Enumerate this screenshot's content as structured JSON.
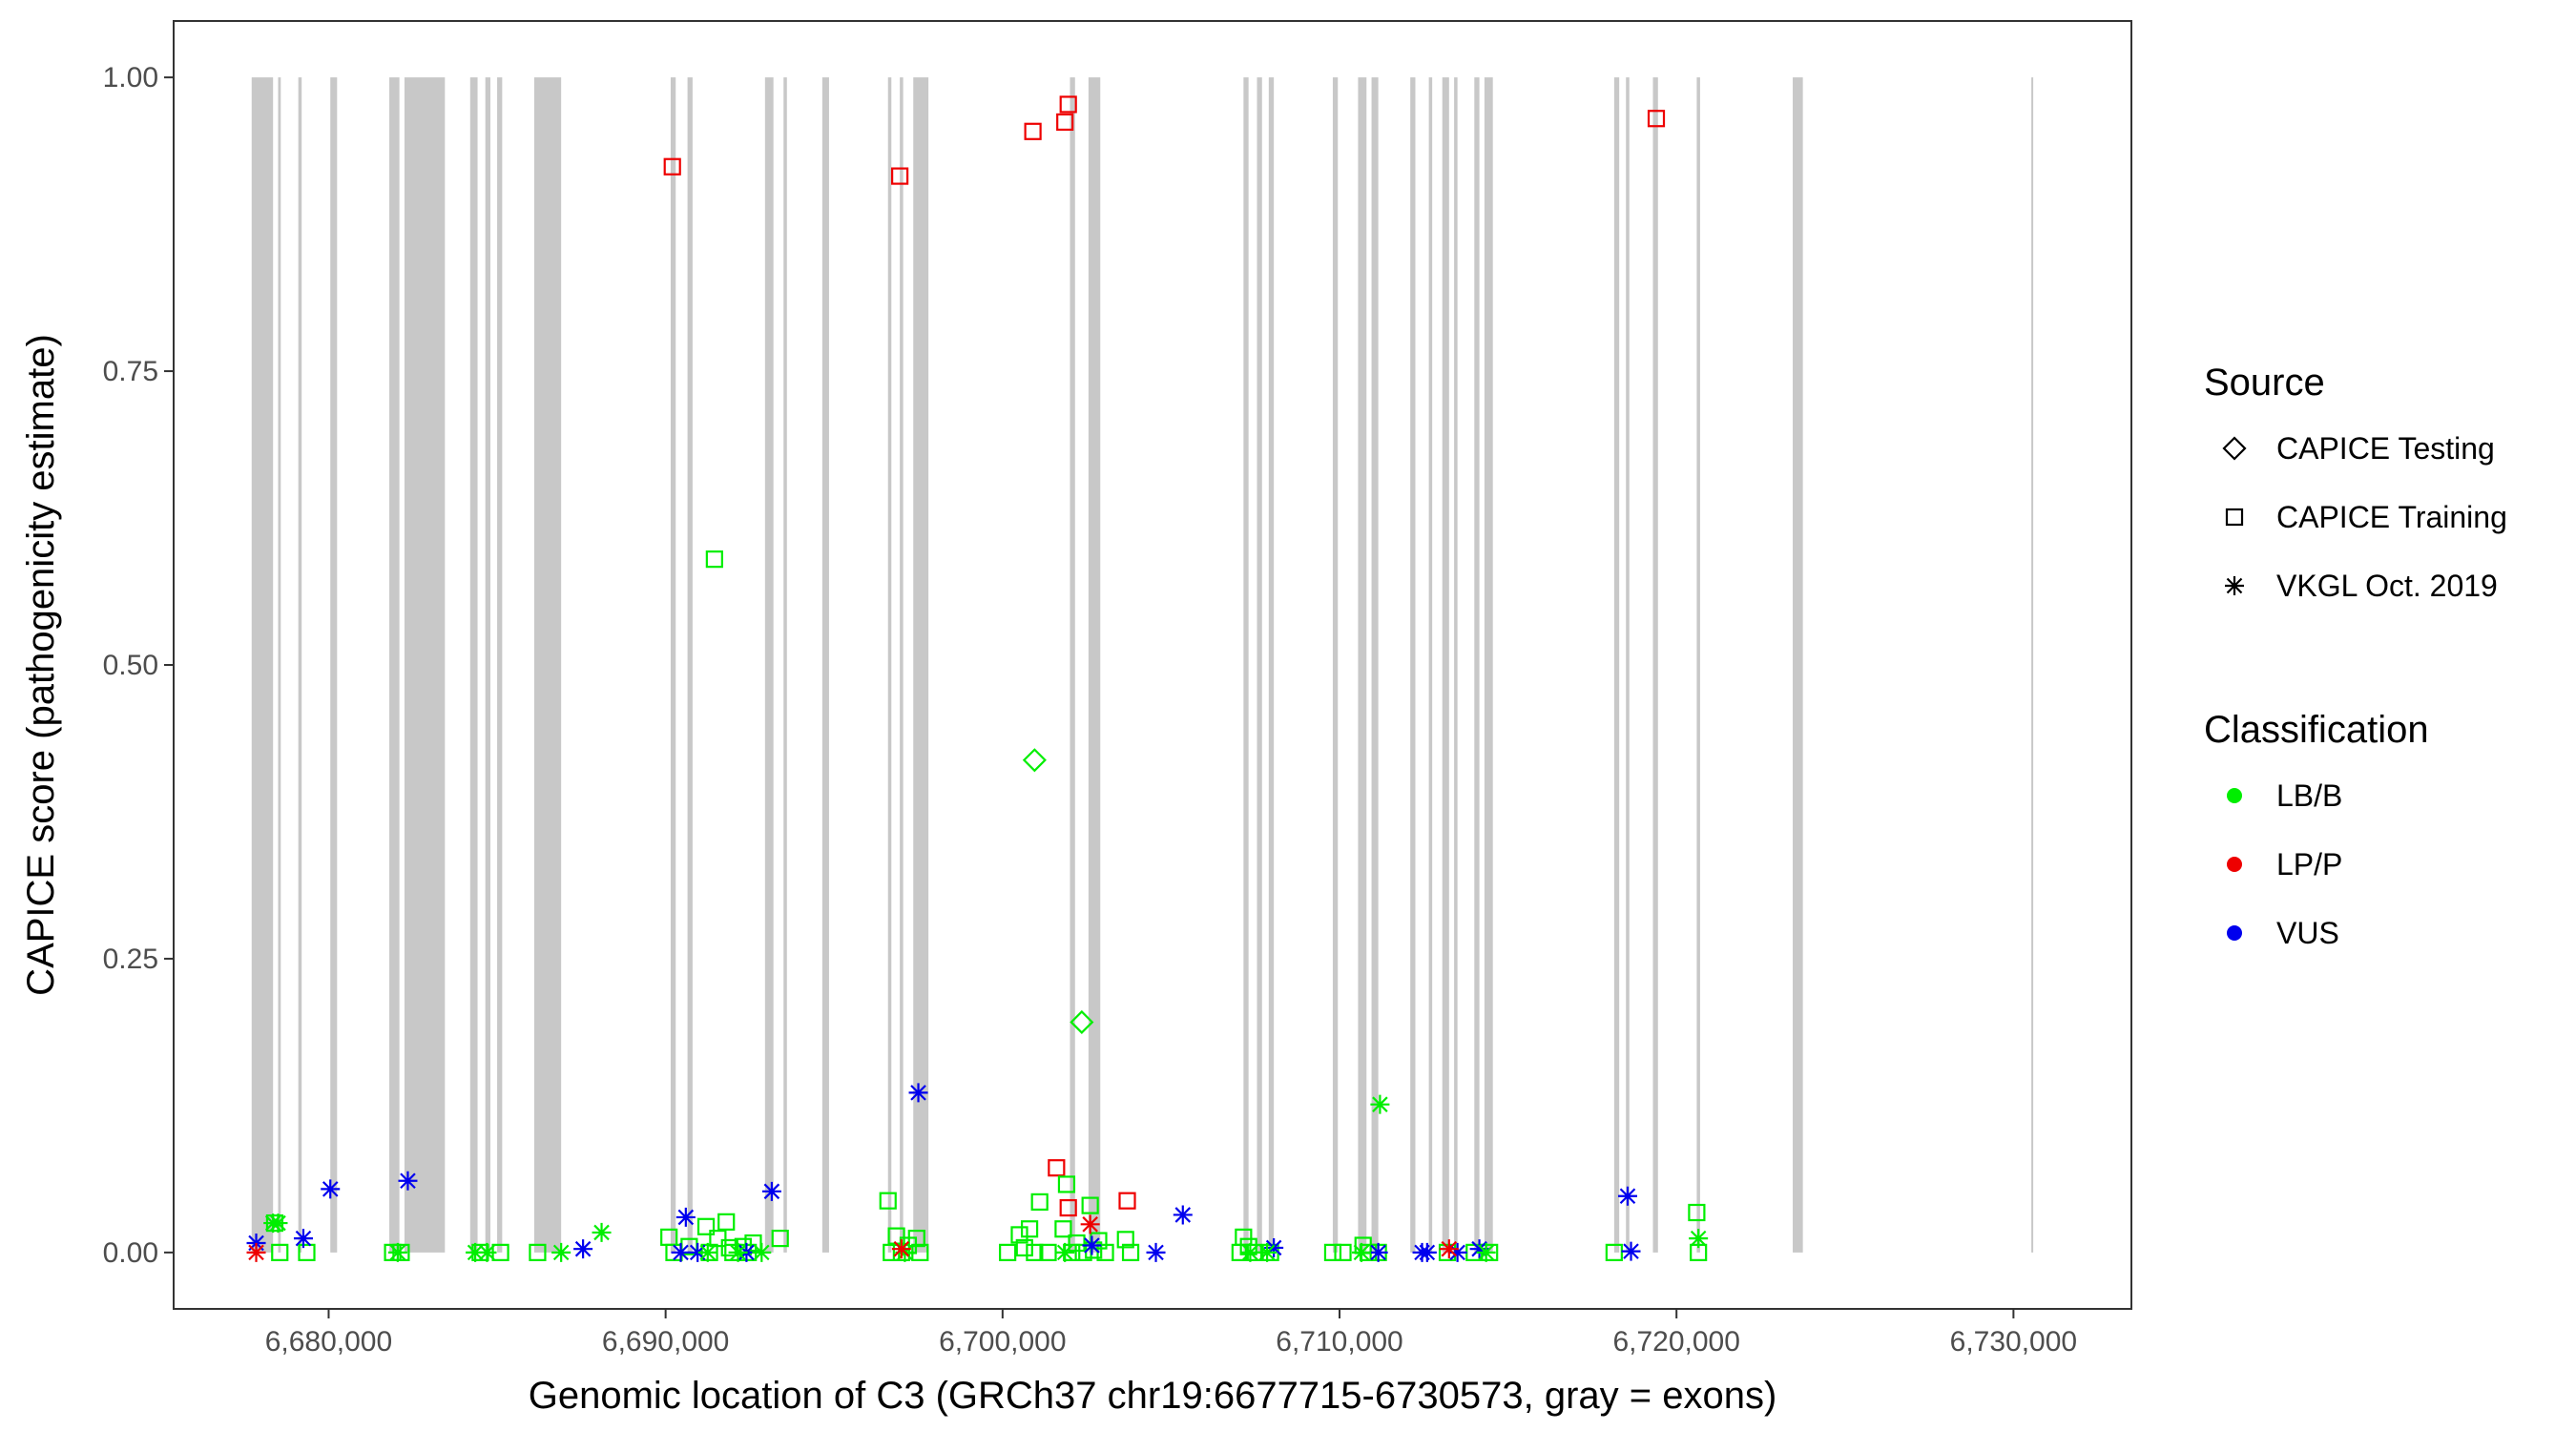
{
  "chart_data": {
    "type": "scatter",
    "title": "",
    "xlabel": "Genomic location of C3 (GRCh37 chr19:6677715-6730573, gray = exons)",
    "ylabel": "CAPICE score (pathogenicity estimate)",
    "xlim": [
      6675400,
      6733500
    ],
    "ylim": [
      -0.048,
      1.048
    ],
    "xticks": [
      6680000,
      6690000,
      6700000,
      6710000,
      6720000,
      6730000
    ],
    "xtick_labels": [
      "6,680,000",
      "6,690,000",
      "6,700,000",
      "6,710,000",
      "6,720,000",
      "6,730,000"
    ],
    "yticks": [
      0,
      0.25,
      0.5,
      0.75,
      1.0
    ],
    "ytick_labels": [
      "0.00",
      "0.25",
      "0.50",
      "0.75",
      "1.00"
    ],
    "grid": false,
    "exon_color": "#c8c8c8",
    "exons": [
      [
        6677715,
        6678350
      ],
      [
        6678500,
        6678580
      ],
      [
        6679100,
        6679200
      ],
      [
        6680050,
        6680250
      ],
      [
        6681800,
        6682100
      ],
      [
        6682250,
        6683450
      ],
      [
        6684200,
        6684420
      ],
      [
        6684650,
        6684800
      ],
      [
        6685000,
        6685150
      ],
      [
        6686100,
        6686900
      ],
      [
        6690150,
        6690300
      ],
      [
        6690650,
        6690800
      ],
      [
        6692950,
        6693200
      ],
      [
        6693500,
        6693600
      ],
      [
        6694650,
        6694850
      ],
      [
        6696600,
        6696700
      ],
      [
        6696950,
        6697050
      ],
      [
        6697350,
        6697800
      ],
      [
        6702000,
        6702150
      ],
      [
        6702550,
        6702900
      ],
      [
        6707150,
        6707300
      ],
      [
        6707550,
        6707700
      ],
      [
        6707900,
        6708050
      ],
      [
        6709800,
        6709950
      ],
      [
        6710550,
        6710800
      ],
      [
        6710950,
        6711150
      ],
      [
        6712100,
        6712250
      ],
      [
        6712650,
        6712750
      ],
      [
        6713050,
        6713250
      ],
      [
        6713400,
        6713500
      ],
      [
        6714000,
        6714150
      ],
      [
        6714300,
        6714550
      ],
      [
        6718150,
        6718300
      ],
      [
        6718500,
        6718600
      ],
      [
        6719300,
        6719450
      ],
      [
        6720600,
        6720700
      ],
      [
        6723450,
        6723750
      ],
      [
        6730530,
        6730573
      ]
    ],
    "classification_colors": {
      "LB/B": "#00ee00",
      "LP/P": "#ee0000",
      "VUS": "#0000ee"
    },
    "legends": [
      {
        "title": "Source",
        "entries": [
          {
            "label": "CAPICE Testing",
            "shape": "diamond"
          },
          {
            "label": "CAPICE Training",
            "shape": "square"
          },
          {
            "label": "VKGL Oct. 2019",
            "shape": "asterisk"
          }
        ]
      },
      {
        "title": "Classification",
        "entries": [
          {
            "label": "LB/B",
            "color": "#00ee00"
          },
          {
            "label": "LP/P",
            "color": "#ee0000"
          },
          {
            "label": "VUS",
            "color": "#0000ee"
          }
        ]
      }
    ],
    "legend_position": "right",
    "series": [
      {
        "source": "CAPICE Training",
        "shape": "square",
        "classification": "LP/P",
        "color": "#ee0000",
        "points": [
          [
            6690200,
            0.924
          ],
          [
            6696950,
            0.916
          ],
          [
            6700900,
            0.954
          ],
          [
            6701850,
            0.962
          ],
          [
            6701950,
            0.977
          ],
          [
            6719400,
            0.965
          ],
          [
            6701600,
            0.072
          ],
          [
            6701950,
            0.038
          ],
          [
            6703700,
            0.044
          ]
        ]
      },
      {
        "source": "CAPICE Training",
        "shape": "square",
        "classification": "LB/B",
        "color": "#00ee00",
        "points": [
          [
            6691450,
            0.59
          ],
          [
            6678400,
            0.025
          ],
          [
            6678550,
            0.0
          ],
          [
            6679350,
            0.0
          ],
          [
            6681900,
            0.0
          ],
          [
            6682150,
            0.0
          ],
          [
            6684500,
            0.0
          ],
          [
            6685100,
            0.0
          ],
          [
            6686200,
            0.0
          ],
          [
            6690100,
            0.013
          ],
          [
            6690250,
            0.0
          ],
          [
            6690700,
            0.005
          ],
          [
            6691200,
            0.022
          ],
          [
            6691300,
            0.0
          ],
          [
            6691550,
            0.012
          ],
          [
            6691800,
            0.026
          ],
          [
            6691900,
            0.004
          ],
          [
            6692000,
            0.0
          ],
          [
            6692300,
            0.005
          ],
          [
            6692450,
            0.0
          ],
          [
            6692600,
            0.008
          ],
          [
            6693400,
            0.012
          ],
          [
            6696600,
            0.044
          ],
          [
            6696700,
            0.0
          ],
          [
            6696850,
            0.014
          ],
          [
            6697000,
            0.0
          ],
          [
            6697200,
            0.006
          ],
          [
            6697450,
            0.012
          ],
          [
            6697550,
            0.0
          ],
          [
            6700150,
            0.0
          ],
          [
            6700500,
            0.015
          ],
          [
            6700650,
            0.004
          ],
          [
            6700800,
            0.02
          ],
          [
            6700950,
            0.0
          ],
          [
            6701100,
            0.043
          ],
          [
            6701350,
            0.0
          ],
          [
            6701800,
            0.02
          ],
          [
            6701900,
            0.058
          ],
          [
            6702050,
            0.0
          ],
          [
            6702200,
            0.008
          ],
          [
            6702400,
            0.0
          ],
          [
            6702600,
            0.04
          ],
          [
            6702700,
            0.002
          ],
          [
            6702850,
            0.01
          ],
          [
            6703050,
            0.0
          ],
          [
            6703650,
            0.011
          ],
          [
            6703800,
            0.0
          ],
          [
            6707050,
            0.0
          ],
          [
            6707150,
            0.013
          ],
          [
            6707300,
            0.005
          ],
          [
            6707450,
            0.0
          ],
          [
            6707950,
            0.0
          ],
          [
            6709800,
            0.0
          ],
          [
            6710100,
            0.0
          ],
          [
            6710700,
            0.006
          ],
          [
            6710850,
            0.0
          ],
          [
            6711150,
            0.0
          ],
          [
            6713200,
            0.0
          ],
          [
            6714000,
            0.0
          ],
          [
            6714450,
            0.0
          ],
          [
            6718150,
            0.0
          ],
          [
            6720600,
            0.034
          ],
          [
            6720650,
            0.0
          ]
        ]
      },
      {
        "source": "CAPICE Testing",
        "shape": "diamond",
        "classification": "LB/B",
        "color": "#00ee00",
        "points": [
          [
            6700950,
            0.419
          ],
          [
            6702350,
            0.196
          ]
        ]
      },
      {
        "source": "VKGL Oct. 2019",
        "shape": "asterisk",
        "classification": "VUS",
        "color": "#0000ee",
        "points": [
          [
            6677850,
            0.008
          ],
          [
            6679250,
            0.012
          ],
          [
            6680050,
            0.054
          ],
          [
            6682350,
            0.061
          ],
          [
            6687550,
            0.003
          ],
          [
            6690450,
            0.0
          ],
          [
            6690600,
            0.03
          ],
          [
            6690950,
            0.0
          ],
          [
            6692400,
            0.0
          ],
          [
            6693150,
            0.052
          ],
          [
            6697500,
            0.136
          ],
          [
            6702650,
            0.006
          ],
          [
            6704550,
            0.0
          ],
          [
            6705350,
            0.032
          ],
          [
            6708050,
            0.004
          ],
          [
            6711150,
            0.0
          ],
          [
            6712450,
            0.0
          ],
          [
            6712600,
            0.0
          ],
          [
            6713500,
            0.0
          ],
          [
            6714150,
            0.003
          ],
          [
            6718550,
            0.048
          ],
          [
            6718650,
            0.001
          ]
        ]
      },
      {
        "source": "VKGL Oct. 2019",
        "shape": "asterisk",
        "classification": "LB/B",
        "color": "#00ee00",
        "points": [
          [
            6678350,
            0.025
          ],
          [
            6678500,
            0.025
          ],
          [
            6682050,
            0.0
          ],
          [
            6684350,
            0.0
          ],
          [
            6684700,
            0.0
          ],
          [
            6686900,
            0.0
          ],
          [
            6688100,
            0.017
          ],
          [
            6691250,
            0.0
          ],
          [
            6692150,
            0.0
          ],
          [
            6692850,
            0.0
          ],
          [
            6697100,
            0.0
          ],
          [
            6701850,
            0.0
          ],
          [
            6707350,
            0.0
          ],
          [
            6707850,
            0.0
          ],
          [
            6710650,
            0.0
          ],
          [
            6711200,
            0.126
          ],
          [
            6714350,
            0.0
          ],
          [
            6720650,
            0.012
          ]
        ]
      },
      {
        "source": "VKGL Oct. 2019",
        "shape": "asterisk",
        "classification": "LP/P",
        "color": "#ee0000",
        "points": [
          [
            6677850,
            0.0
          ],
          [
            6697000,
            0.003
          ],
          [
            6702600,
            0.024
          ],
          [
            6713250,
            0.003
          ]
        ]
      }
    ]
  }
}
